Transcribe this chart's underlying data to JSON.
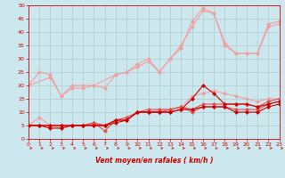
{
  "bg_color": "#cce8ee",
  "grid_color": "#aacccc",
  "line_color_light": "#f0a0a0",
  "line_color_mid": "#e05050",
  "line_color_dark": "#cc0000",
  "xlabel": "Vent moyen/en rafales ( km/h )",
  "xlim": [
    0,
    23
  ],
  "ylim": [
    0,
    50
  ],
  "xticks": [
    0,
    1,
    2,
    3,
    4,
    5,
    6,
    7,
    8,
    9,
    10,
    11,
    12,
    13,
    14,
    15,
    16,
    17,
    18,
    19,
    20,
    21,
    22,
    23
  ],
  "yticks": [
    0,
    5,
    10,
    15,
    20,
    25,
    30,
    35,
    40,
    45,
    50
  ],
  "series_light_1": [
    [
      0,
      20
    ],
    [
      1,
      25
    ],
    [
      2,
      24
    ],
    [
      3,
      16
    ],
    [
      4,
      20
    ],
    [
      5,
      20
    ],
    [
      6,
      20
    ],
    [
      7,
      19
    ],
    [
      8,
      24
    ],
    [
      9,
      25
    ],
    [
      10,
      28
    ],
    [
      11,
      30
    ],
    [
      12,
      25
    ],
    [
      13,
      30
    ],
    [
      14,
      35
    ],
    [
      15,
      42
    ],
    [
      16,
      48
    ],
    [
      17,
      47
    ],
    [
      18,
      36
    ],
    [
      19,
      32
    ],
    [
      20,
      32
    ],
    [
      21,
      32
    ],
    [
      22,
      43
    ],
    [
      23,
      44
    ]
  ],
  "series_light_2": [
    [
      0,
      20
    ],
    [
      2,
      23
    ],
    [
      3,
      16
    ],
    [
      4,
      19
    ],
    [
      5,
      19
    ],
    [
      6,
      20
    ],
    [
      8,
      24
    ],
    [
      9,
      25
    ],
    [
      10,
      27
    ],
    [
      11,
      29
    ],
    [
      12,
      25
    ],
    [
      13,
      30
    ],
    [
      14,
      34
    ],
    [
      15,
      44
    ],
    [
      16,
      49
    ],
    [
      17,
      47
    ],
    [
      18,
      35
    ],
    [
      19,
      32
    ],
    [
      20,
      32
    ],
    [
      21,
      32
    ],
    [
      22,
      42
    ],
    [
      23,
      43
    ]
  ],
  "series_light_3": [
    [
      0,
      5
    ],
    [
      1,
      8
    ],
    [
      2,
      5
    ],
    [
      3,
      4
    ],
    [
      4,
      5
    ],
    [
      5,
      5
    ],
    [
      6,
      6
    ],
    [
      7,
      5
    ],
    [
      8,
      7
    ],
    [
      9,
      8
    ],
    [
      10,
      10
    ],
    [
      11,
      10
    ],
    [
      12,
      11
    ],
    [
      13,
      11
    ],
    [
      14,
      12
    ],
    [
      15,
      16
    ],
    [
      16,
      17
    ],
    [
      17,
      18
    ],
    [
      18,
      17
    ],
    [
      19,
      16
    ],
    [
      20,
      15
    ],
    [
      21,
      14
    ],
    [
      22,
      15
    ],
    [
      23,
      15
    ]
  ],
  "series_mid_1": [
    [
      0,
      5
    ],
    [
      1,
      5
    ],
    [
      2,
      5
    ],
    [
      3,
      5
    ],
    [
      4,
      5
    ],
    [
      5,
      5
    ],
    [
      6,
      6
    ],
    [
      7,
      5
    ],
    [
      8,
      7
    ],
    [
      9,
      8
    ],
    [
      10,
      10
    ],
    [
      11,
      11
    ],
    [
      12,
      11
    ],
    [
      13,
      11
    ],
    [
      14,
      12
    ],
    [
      15,
      11
    ],
    [
      16,
      13
    ],
    [
      17,
      13
    ],
    [
      18,
      13
    ],
    [
      19,
      13
    ],
    [
      20,
      13
    ],
    [
      21,
      12
    ],
    [
      22,
      14
    ],
    [
      23,
      15
    ]
  ],
  "series_mid_2": [
    [
      0,
      5
    ],
    [
      1,
      5
    ],
    [
      2,
      5
    ],
    [
      3,
      5
    ],
    [
      4,
      5
    ],
    [
      5,
      5
    ],
    [
      6,
      6
    ],
    [
      7,
      3
    ],
    [
      8,
      7
    ],
    [
      9,
      7
    ],
    [
      10,
      10
    ],
    [
      11,
      10
    ],
    [
      12,
      10
    ],
    [
      13,
      11
    ],
    [
      14,
      12
    ],
    [
      15,
      10
    ],
    [
      16,
      12
    ],
    [
      17,
      12
    ],
    [
      18,
      12
    ],
    [
      19,
      11
    ],
    [
      20,
      11
    ],
    [
      21,
      11
    ],
    [
      22,
      13
    ],
    [
      23,
      14
    ]
  ],
  "series_dark_1": [
    [
      0,
      5
    ],
    [
      1,
      5
    ],
    [
      2,
      5
    ],
    [
      3,
      5
    ],
    [
      4,
      5
    ],
    [
      5,
      5
    ],
    [
      6,
      5
    ],
    [
      7,
      5
    ],
    [
      8,
      7
    ],
    [
      9,
      7
    ],
    [
      10,
      10
    ],
    [
      11,
      10
    ],
    [
      12,
      10
    ],
    [
      13,
      10
    ],
    [
      14,
      11
    ],
    [
      15,
      15
    ],
    [
      16,
      20
    ],
    [
      17,
      17
    ],
    [
      18,
      13
    ],
    [
      19,
      13
    ],
    [
      20,
      13
    ],
    [
      21,
      12
    ],
    [
      22,
      13
    ],
    [
      23,
      14
    ]
  ],
  "series_dark_2": [
    [
      0,
      5
    ],
    [
      1,
      5
    ],
    [
      2,
      4
    ],
    [
      3,
      4
    ],
    [
      4,
      5
    ],
    [
      5,
      5
    ],
    [
      6,
      5
    ],
    [
      7,
      5
    ],
    [
      8,
      6
    ],
    [
      9,
      7
    ],
    [
      10,
      10
    ],
    [
      11,
      10
    ],
    [
      12,
      10
    ],
    [
      13,
      10
    ],
    [
      14,
      11
    ],
    [
      15,
      11
    ],
    [
      16,
      12
    ],
    [
      17,
      12
    ],
    [
      18,
      12
    ],
    [
      19,
      10
    ],
    [
      20,
      10
    ],
    [
      21,
      10
    ],
    [
      22,
      12
    ],
    [
      23,
      13
    ]
  ],
  "marker_size": 2.5
}
